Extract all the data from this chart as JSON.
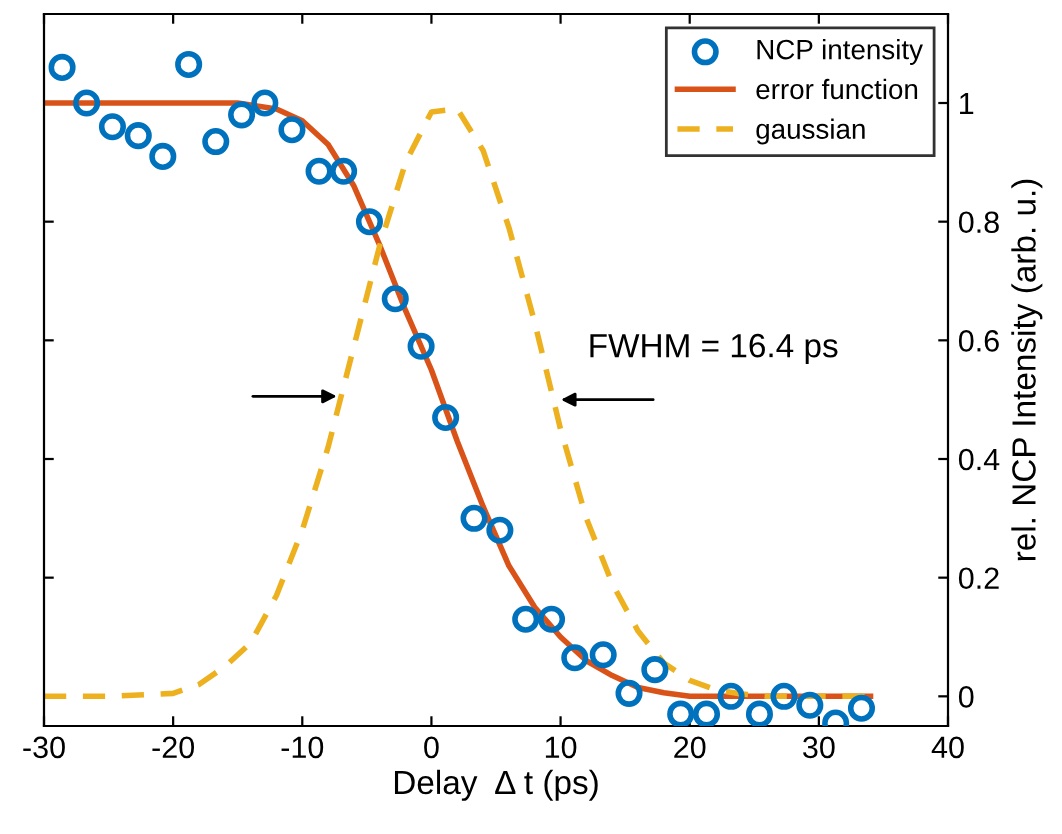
{
  "chart_data": {
    "type": "scatter",
    "xlabel": "Delay  Δ t (ps)",
    "ylabel": "rel. NCP Intensity (arb. u.)",
    "xlim": [
      -30,
      40
    ],
    "xticks": [
      -30,
      -20,
      -10,
      0,
      10,
      20,
      30,
      40
    ],
    "ylim": [
      -0.05,
      1.15
    ],
    "yticks": [
      0,
      0.2,
      0.4,
      0.6,
      0.8,
      1
    ],
    "legend": "top right",
    "grid": false,
    "annotations": [
      {
        "text": "FWHM = 16.4 ps",
        "x": 9.6,
        "y": 0.5
      }
    ],
    "series": [
      {
        "name": "NCP intensity",
        "marker": "circle",
        "color": "#0072bd",
        "x": [
          -28.6,
          -26.7,
          -24.7,
          -22.7,
          -20.8,
          -18.8,
          -16.7,
          -14.7,
          -12.9,
          -10.8,
          -8.7,
          -6.8,
          -4.8,
          -2.8,
          -0.8,
          1.1,
          3.3,
          5.3,
          7.3,
          9.3,
          11.1,
          13.3,
          15.3,
          17.3,
          19.3,
          21.3,
          23.2,
          25.4,
          27.3,
          29.3,
          31.3,
          33.3
        ],
        "values": [
          1.06,
          1.0,
          0.96,
          0.945,
          0.91,
          1.065,
          0.935,
          0.98,
          1.0,
          0.955,
          0.885,
          0.885,
          0.8,
          0.67,
          0.59,
          0.47,
          0.3,
          0.28,
          0.13,
          0.13,
          0.065,
          0.07,
          0.005,
          0.045,
          -0.03,
          -0.03,
          0.0,
          -0.03,
          0.0,
          -0.015,
          -0.045,
          -0.02
        ]
      },
      {
        "name": "error function",
        "type": "line",
        "line_style": "solid",
        "color": "#d95319",
        "x": [
          -30,
          -25,
          -20,
          -15,
          -12,
          -10,
          -8,
          -6,
          -4,
          -2,
          0,
          2,
          4,
          6,
          8,
          10,
          12,
          14,
          16,
          18,
          20,
          25,
          30,
          34
        ],
        "values": [
          1.0,
          1.0,
          1.0,
          1.0,
          0.99,
          0.97,
          0.93,
          0.86,
          0.76,
          0.65,
          0.55,
          0.43,
          0.32,
          0.22,
          0.15,
          0.1,
          0.06,
          0.035,
          0.015,
          0.006,
          0.0,
          0.0,
          0.0,
          0.0
        ]
      },
      {
        "name": "gaussian",
        "type": "line",
        "line_style": "dashed",
        "color": "#edb120",
        "x": [
          -30,
          -25,
          -20,
          -18,
          -16,
          -14,
          -12,
          -10,
          -8,
          -6,
          -4,
          -2,
          0,
          2,
          4,
          6,
          8,
          10,
          12,
          14,
          16,
          18,
          20,
          22,
          24,
          26,
          30,
          34
        ],
        "values": [
          0.0,
          0.0,
          0.005,
          0.02,
          0.05,
          0.09,
          0.17,
          0.28,
          0.42,
          0.59,
          0.76,
          0.9,
          0.985,
          0.99,
          0.92,
          0.79,
          0.63,
          0.45,
          0.3,
          0.19,
          0.11,
          0.056,
          0.027,
          0.011,
          0.004,
          0.0,
          0.0,
          0.0
        ]
      }
    ]
  }
}
